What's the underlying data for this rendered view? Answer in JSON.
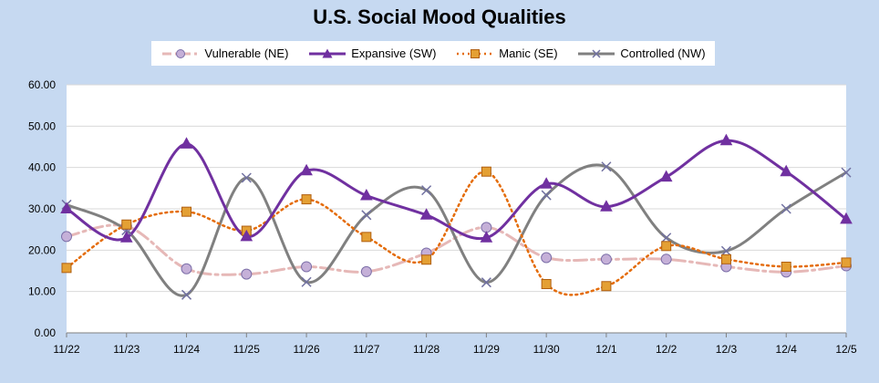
{
  "chart_data": {
    "type": "line",
    "title": "U.S.  Social Mood Qualities",
    "categories": [
      "11/22",
      "11/23",
      "11/24",
      "11/25",
      "11/26",
      "11/27",
      "11/28",
      "11/29",
      "11/30",
      "12/1",
      "12/2",
      "12/3",
      "12/4",
      "12/5"
    ],
    "ylim": [
      0,
      60
    ],
    "yticks": [
      "0.00",
      "10.00",
      "20.00",
      "30.00",
      "40.00",
      "50.00",
      "60.00"
    ],
    "grid": "horizontal",
    "legend_position": "top",
    "series": [
      {
        "name": "Vulnerable (NE)",
        "color": "#e6b8b7",
        "marker": "circle",
        "marker_fill": "#c5b0d8",
        "marker_stroke": "#7c6fa8",
        "dash": "14 5 3 5",
        "smooth": true,
        "values": [
          23.3,
          25.8,
          15.5,
          14.2,
          16.0,
          14.8,
          19.3,
          25.5,
          18.2,
          17.8,
          17.8,
          16.0,
          14.7,
          16.2
        ]
      },
      {
        "name": "Expansive (SW)",
        "color": "#7030a0",
        "marker": "triangle",
        "marker_fill": "#7030a0",
        "marker_stroke": "#7030a0",
        "dash": "",
        "smooth": true,
        "values": [
          30.0,
          23.0,
          45.7,
          23.3,
          39.2,
          33.2,
          28.5,
          23.0,
          36.0,
          30.5,
          37.7,
          46.5,
          39.0,
          27.5
        ]
      },
      {
        "name": "Manic (SE)",
        "color": "#e46c0a",
        "marker": "square",
        "marker_fill": "#e4a034",
        "marker_stroke": "#b05f10",
        "dash": "2 4",
        "smooth": true,
        "values": [
          15.7,
          26.2,
          29.3,
          24.7,
          32.3,
          23.2,
          17.7,
          39.0,
          11.8,
          11.3,
          21.0,
          17.8,
          16.0,
          17.0
        ]
      },
      {
        "name": "Controlled (NW)",
        "color": "#808080",
        "marker": "x",
        "marker_fill": "none",
        "marker_stroke": "#7070a0",
        "dash": "",
        "smooth": true,
        "values": [
          31.0,
          24.8,
          9.2,
          37.5,
          12.3,
          28.5,
          34.5,
          12.2,
          33.3,
          40.2,
          23.0,
          19.8,
          30.0,
          38.8
        ]
      }
    ]
  }
}
